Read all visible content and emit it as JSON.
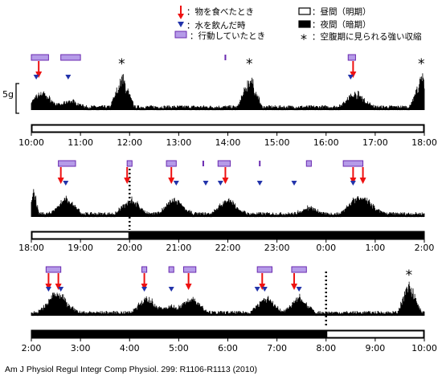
{
  "legend": {
    "eat": "：物を食べたとき",
    "drink": "：水を飲んだ時",
    "active": "：行動していたとき",
    "day": "：昼間（明期）",
    "night": "：夜間（暗期）",
    "contraction": "：空腹期に見られる強い収縮"
  },
  "scale_label": "5g",
  "citation": "Am J Physiol Regul Integr Comp Physiol. 299: R1106-R1113 (2010)",
  "colors": {
    "eat": "#ee1111",
    "drink": "#2233aa",
    "active_fill": "#b59be8",
    "active_stroke": "#6a2ab0"
  },
  "panels": [
    {
      "ticks": [
        "10:00",
        "11:00",
        "12:00",
        "13:00",
        "14:00",
        "15:00",
        "16:00",
        "17:00",
        "18:00"
      ],
      "light_periods": [
        [
          0,
          8
        ]
      ],
      "dark_start_line": null,
      "eat": [
        0.15,
        6.55
      ],
      "drink": [
        0.1,
        0.75,
        6.5
      ],
      "active": [
        [
          0.0,
          0.35
        ],
        [
          0.6,
          1.0
        ],
        [
          6.45,
          6.6
        ]
      ],
      "active_ticks": [
        3.95
      ],
      "contractions": [
        1.85,
        4.45,
        7.95
      ]
    },
    {
      "ticks": [
        "18:00",
        "19:00",
        "20:00",
        "21:00",
        "22:00",
        "23:00",
        "0:00",
        "1:00",
        "2:00"
      ],
      "light_periods": [
        [
          0,
          2
        ]
      ],
      "dark_start_line": 2,
      "eat": [
        0.6,
        1.95,
        2.85,
        3.95,
        6.55,
        6.75
      ],
      "drink": [
        0.7,
        2.95,
        3.55,
        3.85,
        4.65,
        5.35,
        6.55
      ],
      "active": [
        [
          0.55,
          0.9
        ],
        [
          1.95,
          2.05
        ],
        [
          2.75,
          2.95
        ],
        [
          3.8,
          4.05
        ],
        [
          6.35,
          6.75
        ],
        [
          5.6,
          5.7
        ]
      ],
      "active_ticks": [
        3.5,
        4.65
      ],
      "contractions": []
    },
    {
      "ticks": [
        "2:00",
        "3:00",
        "4:00",
        "5:00",
        "6:00",
        "7:00",
        "8:00",
        "9:00",
        "10:00"
      ],
      "light_periods": [
        [
          6,
          8
        ]
      ],
      "dark_start_line": 6,
      "eat": [
        0.35,
        0.55,
        2.3,
        3.2,
        4.7,
        5.35
      ],
      "drink": [
        0.35,
        0.6,
        2.3,
        2.85,
        4.6,
        4.75,
        5.45
      ],
      "active": [
        [
          0.3,
          0.6
        ],
        [
          2.25,
          2.35
        ],
        [
          2.8,
          2.9
        ],
        [
          3.1,
          3.35
        ],
        [
          4.6,
          4.9
        ],
        [
          5.3,
          5.6
        ]
      ],
      "active_ticks": [],
      "contractions": [
        7.7
      ]
    }
  ]
}
